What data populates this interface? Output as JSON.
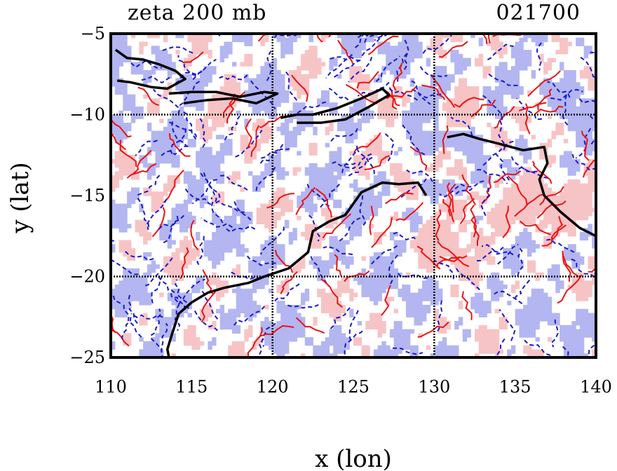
{
  "chart_data": {
    "type": "heatmap",
    "title": "zeta 200 mb",
    "time_label": "021700",
    "xlabel": "x (lon)",
    "ylabel": "y (lat)",
    "xlim": [
      110,
      140
    ],
    "ylim": [
      -25,
      -5
    ],
    "x_ticks": [
      110,
      115,
      120,
      125,
      130,
      135,
      140
    ],
    "y_ticks": [
      -5,
      -10,
      -15,
      -20,
      -25
    ],
    "x_tick_labels": [
      "110",
      "115",
      "120",
      "125",
      "130",
      "135",
      "140"
    ],
    "y_tick_labels": [
      "−5",
      "−10",
      "−15",
      "−20",
      "−25"
    ],
    "grid_x": [
      120,
      130
    ],
    "grid_y": [
      -10,
      -20
    ],
    "grid": true,
    "colors": {
      "positive_line": "#ee1111",
      "positive_fill": "#f7c4c6",
      "negative_line": "#1a1acc",
      "negative_fill": "#b3b6f0",
      "coastline": "#000000"
    },
    "coastline": [
      [
        [
          110.3,
          -6.0
        ],
        [
          111.0,
          -6.5
        ],
        [
          112.0,
          -6.6
        ],
        [
          113.0,
          -6.9
        ],
        [
          114.0,
          -7.3
        ],
        [
          114.6,
          -7.8
        ],
        [
          113.5,
          -8.4
        ],
        [
          112.5,
          -8.3
        ],
        [
          111.2,
          -8.0
        ],
        [
          110.4,
          -7.9
        ]
      ],
      [
        [
          113.6,
          -8.7
        ],
        [
          115.0,
          -8.6
        ],
        [
          116.5,
          -8.6
        ],
        [
          118.0,
          -8.9
        ],
        [
          119.5,
          -8.6
        ],
        [
          120.3,
          -8.7
        ],
        [
          119.0,
          -9.3
        ],
        [
          117.5,
          -9.0
        ],
        [
          116.0,
          -9.1
        ],
        [
          114.5,
          -9.3
        ]
      ],
      [
        [
          120.5,
          -10.2
        ],
        [
          121.5,
          -10.0
        ],
        [
          122.5,
          -10.0
        ],
        [
          124.0,
          -9.6
        ],
        [
          125.5,
          -9.0
        ],
        [
          126.8,
          -8.4
        ],
        [
          127.2,
          -8.8
        ],
        [
          126.0,
          -9.5
        ],
        [
          124.5,
          -10.3
        ],
        [
          123.0,
          -10.5
        ],
        [
          121.5,
          -10.5
        ]
      ],
      [
        [
          130.8,
          -11.4
        ],
        [
          131.8,
          -11.2
        ],
        [
          132.8,
          -11.5
        ],
        [
          134.0,
          -11.8
        ],
        [
          135.5,
          -12.2
        ],
        [
          136.8,
          -12.0
        ],
        [
          137.0,
          -13.0
        ],
        [
          136.5,
          -14.0
        ],
        [
          136.8,
          -15.0
        ],
        [
          137.8,
          -16.0
        ],
        [
          139.0,
          -17.0
        ],
        [
          140.0,
          -17.5
        ]
      ],
      [
        [
          129.5,
          -15.0
        ],
        [
          129.0,
          -14.2
        ],
        [
          127.8,
          -14.3
        ],
        [
          126.8,
          -14.2
        ],
        [
          125.5,
          -14.8
        ],
        [
          124.5,
          -16.2
        ],
        [
          123.5,
          -16.6
        ],
        [
          122.5,
          -17.2
        ],
        [
          122.2,
          -18.5
        ],
        [
          121.0,
          -19.5
        ],
        [
          119.5,
          -20.0
        ],
        [
          118.5,
          -20.4
        ],
        [
          117.0,
          -20.7
        ],
        [
          116.0,
          -21.0
        ],
        [
          115.0,
          -21.6
        ],
        [
          114.2,
          -22.3
        ],
        [
          113.8,
          -23.5
        ],
        [
          113.5,
          -24.5
        ],
        [
          113.6,
          -25.0
        ]
      ]
    ]
  }
}
